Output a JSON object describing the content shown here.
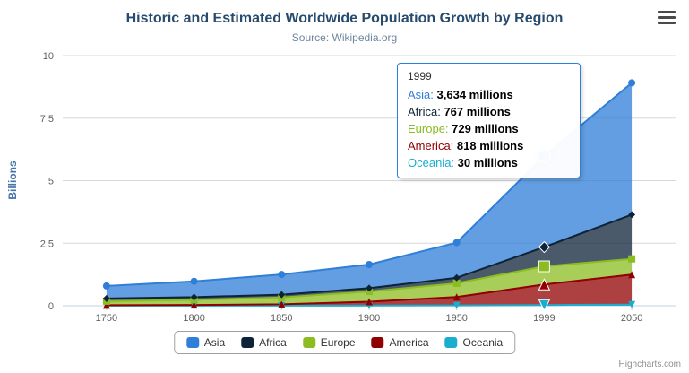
{
  "header": {
    "title": "Historic and Estimated Worldwide Population Growth by Region",
    "subtitle": "Source: Wikipedia.org"
  },
  "credits": "Highcharts.com",
  "tooltip": {
    "header": "1999",
    "rows": [
      {
        "name": "Asia",
        "value": "3,634 millions",
        "color": "#2f7ed8"
      },
      {
        "name": "Africa",
        "value": "767 millions",
        "color": "#0d233a"
      },
      {
        "name": "Europe",
        "value": "729 millions",
        "color": "#8bbc21"
      },
      {
        "name": "America",
        "value": "818 millions",
        "color": "#910000"
      },
      {
        "name": "Oceania",
        "value": "30 millions",
        "color": "#1aadce"
      }
    ]
  },
  "chart_data": {
    "type": "area",
    "stacking": "normal",
    "title": "Historic and Estimated Worldwide Population Growth by Region",
    "subtitle": "Source: Wikipedia.org",
    "xlabel": "",
    "ylabel": "Billions",
    "values_unit": "millions",
    "categories": [
      "1750",
      "1800",
      "1850",
      "1900",
      "1950",
      "1999",
      "2050"
    ],
    "yticks": [
      0,
      2.5,
      5,
      7.5,
      10
    ],
    "ylim": [
      0,
      10
    ],
    "grid": true,
    "legend_position": "bottom",
    "series": [
      {
        "name": "Asia",
        "color": "#2f7ed8",
        "marker": "circle",
        "values": [
          502,
          635,
          809,
          947,
          1402,
          3634,
          5268
        ]
      },
      {
        "name": "Africa",
        "color": "#0d233a",
        "marker": "diamond",
        "values": [
          106,
          107,
          111,
          133,
          221,
          767,
          1766
        ]
      },
      {
        "name": "Europe",
        "color": "#8bbc21",
        "marker": "square",
        "values": [
          163,
          203,
          276,
          408,
          547,
          729,
          628
        ]
      },
      {
        "name": "America",
        "color": "#910000",
        "marker": "triangle",
        "values": [
          18,
          31,
          54,
          156,
          339,
          818,
          1201
        ]
      },
      {
        "name": "Oceania",
        "color": "#1aadce",
        "marker": "triangle-down",
        "values": [
          2,
          2,
          2,
          6,
          13,
          30,
          46
        ]
      }
    ]
  }
}
